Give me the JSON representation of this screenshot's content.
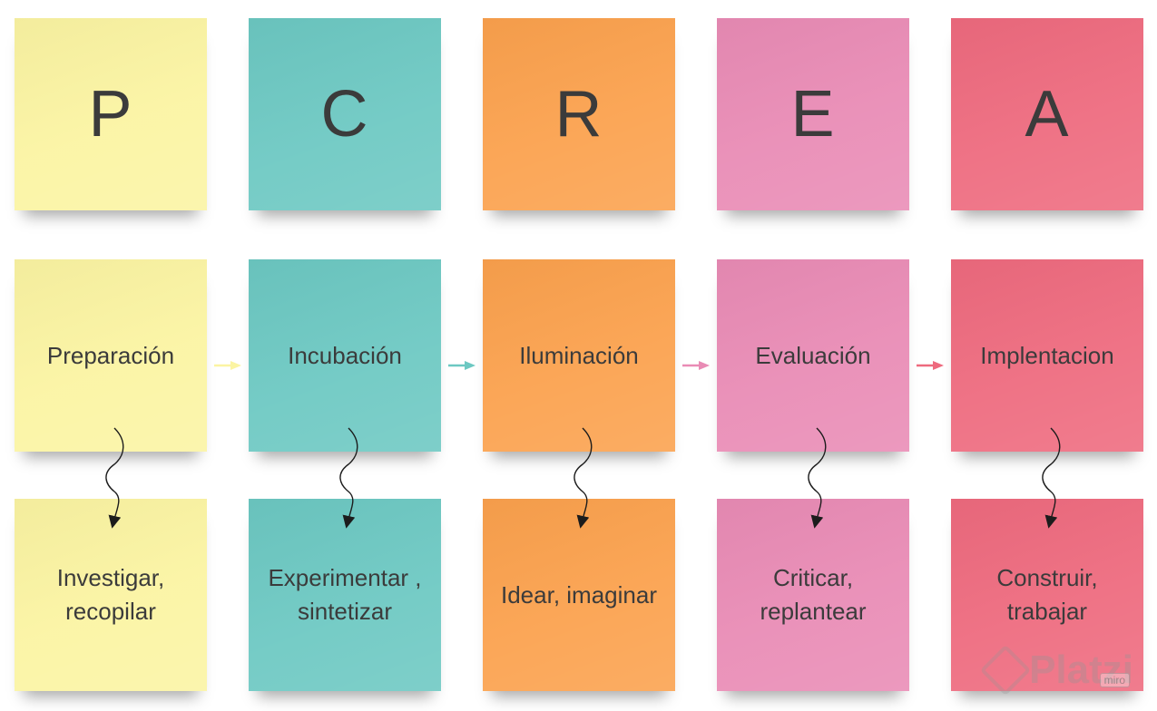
{
  "columns": [
    {
      "letter": "P",
      "stage": "Preparación",
      "action": "Investigar, recopilar",
      "color": "#fbf4a2",
      "arrow_color": "#fbf4a2"
    },
    {
      "letter": "C",
      "stage": "Incubación",
      "action": "Experimentar , sintetizar",
      "color": "#6cc8c2",
      "arrow_color": "#6cc8c2"
    },
    {
      "letter": "R",
      "stage": "Iluminación",
      "action": "Idear, imaginar",
      "color": "#fba14d",
      "arrow_color": "#e98bb5"
    },
    {
      "letter": "E",
      "stage": "Evaluación",
      "action": "Criticar, replantear",
      "color": "#e98bb5",
      "arrow_color": "#ee6a7e"
    },
    {
      "letter": "A",
      "stage": "Implentacion",
      "action": "Construir, trabajar",
      "color": "#ee6a7e",
      "arrow_color": null
    }
  ],
  "watermark": {
    "brand": "Platzi",
    "tool": "miro"
  }
}
